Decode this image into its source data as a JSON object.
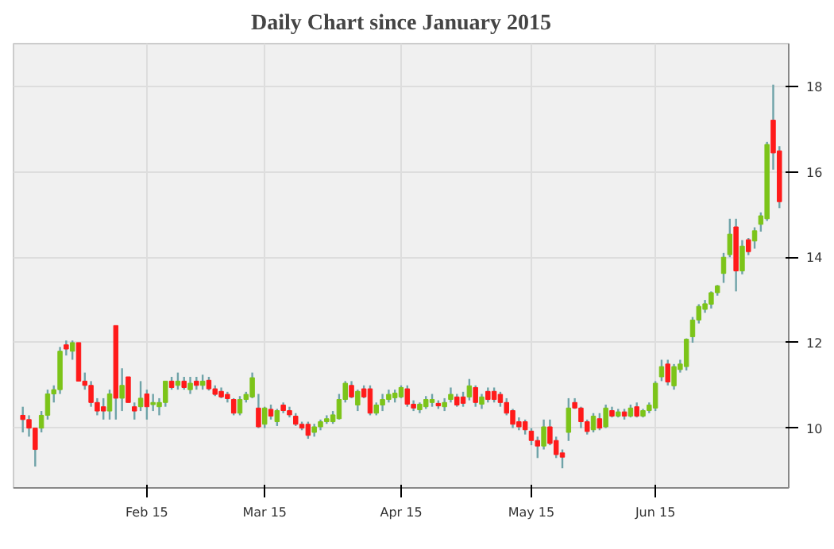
{
  "chart_data": {
    "type": "candlestick",
    "title": "Daily Chart since January 2015",
    "categories": [
      null,
      null,
      null,
      null,
      null,
      null,
      null,
      null,
      null,
      null,
      null,
      null,
      null,
      null,
      null,
      null,
      null,
      null,
      null,
      null,
      "Feb 15",
      null,
      null,
      null,
      null,
      null,
      null,
      null,
      null,
      null,
      null,
      null,
      null,
      null,
      null,
      null,
      null,
      null,
      null,
      "Mar 15",
      null,
      null,
      null,
      null,
      null,
      null,
      null,
      null,
      null,
      null,
      null,
      null,
      null,
      null,
      null,
      null,
      null,
      null,
      null,
      null,
      null,
      "Apr 15",
      null,
      null,
      null,
      null,
      null,
      null,
      null,
      null,
      null,
      null,
      null,
      null,
      null,
      null,
      null,
      null,
      null,
      null,
      null,
      null,
      "May 15",
      null,
      null,
      null,
      null,
      null,
      null,
      null,
      null,
      null,
      null,
      null,
      null,
      null,
      null,
      null,
      null,
      null,
      null,
      null,
      "Jun 15",
      null,
      null,
      null,
      null,
      null,
      null,
      null,
      null,
      null,
      null,
      null,
      null,
      null,
      null,
      null,
      null,
      null,
      null,
      null,
      null
    ],
    "ohlc": [
      [
        10.3,
        10.5,
        9.9,
        10.2
      ],
      [
        10.2,
        10.3,
        9.8,
        10.0
      ],
      [
        10.0,
        10.0,
        9.1,
        9.5
      ],
      [
        10.0,
        10.4,
        9.9,
        10.3
      ],
      [
        10.3,
        10.9,
        10.2,
        10.8
      ],
      [
        10.8,
        11.0,
        10.6,
        10.9
      ],
      [
        10.9,
        11.9,
        10.8,
        11.8
      ],
      [
        11.95,
        12.05,
        11.7,
        11.85
      ],
      [
        11.8,
        12.05,
        11.6,
        12.0
      ],
      [
        12.0,
        12.0,
        11.1,
        11.1
      ],
      [
        11.1,
        11.3,
        10.9,
        11.0
      ],
      [
        11.0,
        11.1,
        10.5,
        10.6
      ],
      [
        10.6,
        10.7,
        10.3,
        10.4
      ],
      [
        10.5,
        10.7,
        10.2,
        10.4
      ],
      [
        10.4,
        10.9,
        10.2,
        10.8
      ],
      [
        12.4,
        12.4,
        10.2,
        10.7
      ],
      [
        10.7,
        11.4,
        10.4,
        11.0
      ],
      [
        11.2,
        11.2,
        10.6,
        10.6
      ],
      [
        10.5,
        10.6,
        10.2,
        10.4
      ],
      [
        10.5,
        11.1,
        10.4,
        10.7
      ],
      [
        10.8,
        10.9,
        10.2,
        10.5
      ],
      [
        10.55,
        10.8,
        10.4,
        10.6
      ],
      [
        10.5,
        10.7,
        10.3,
        10.6
      ],
      [
        10.6,
        11.1,
        10.5,
        11.1
      ],
      [
        11.1,
        11.2,
        10.9,
        10.95
      ],
      [
        11.0,
        11.3,
        10.9,
        11.1
      ],
      [
        11.1,
        11.2,
        10.9,
        10.95
      ],
      [
        10.9,
        11.2,
        10.8,
        11.05
      ],
      [
        11.1,
        11.2,
        10.9,
        11.0
      ],
      [
        11.0,
        11.25,
        10.9,
        11.1
      ],
      [
        11.12,
        11.2,
        10.88,
        10.92
      ],
      [
        10.92,
        11.0,
        10.75,
        10.79
      ],
      [
        10.86,
        10.95,
        10.7,
        10.73
      ],
      [
        10.79,
        10.85,
        10.6,
        10.69
      ],
      [
        10.67,
        10.7,
        10.3,
        10.35
      ],
      [
        10.35,
        10.75,
        10.3,
        10.67
      ],
      [
        10.67,
        10.85,
        10.6,
        10.79
      ],
      [
        10.73,
        11.3,
        10.7,
        11.18
      ],
      [
        10.47,
        10.8,
        10.0,
        10.03
      ],
      [
        10.09,
        10.5,
        10.0,
        10.47
      ],
      [
        10.44,
        10.55,
        10.2,
        10.28
      ],
      [
        10.15,
        10.45,
        10.05,
        10.41
      ],
      [
        10.54,
        10.6,
        10.35,
        10.41
      ],
      [
        10.41,
        10.5,
        10.25,
        10.31
      ],
      [
        10.28,
        10.35,
        10.05,
        10.09
      ],
      [
        10.09,
        10.15,
        9.95,
        10.0
      ],
      [
        10.09,
        10.15,
        9.75,
        9.83
      ],
      [
        9.9,
        10.1,
        9.8,
        10.03
      ],
      [
        10.03,
        10.2,
        9.95,
        10.15
      ],
      [
        10.15,
        10.3,
        10.1,
        10.22
      ],
      [
        10.15,
        10.4,
        10.1,
        10.31
      ],
      [
        10.22,
        10.8,
        10.2,
        10.67
      ],
      [
        10.67,
        11.1,
        10.6,
        11.05
      ],
      [
        11.0,
        11.1,
        10.7,
        10.73
      ],
      [
        10.54,
        10.9,
        10.4,
        10.86
      ],
      [
        10.92,
        11.0,
        10.7,
        10.73
      ],
      [
        10.92,
        11.0,
        10.3,
        10.35
      ],
      [
        10.35,
        10.6,
        10.3,
        10.54
      ],
      [
        10.54,
        10.8,
        10.4,
        10.67
      ],
      [
        10.67,
        10.9,
        10.6,
        10.79
      ],
      [
        10.71,
        10.9,
        10.6,
        10.82
      ],
      [
        10.73,
        11.0,
        10.7,
        10.95
      ],
      [
        10.92,
        11.0,
        10.5,
        10.56
      ],
      [
        10.56,
        10.65,
        10.4,
        10.47
      ],
      [
        10.43,
        10.6,
        10.35,
        10.56
      ],
      [
        10.5,
        10.75,
        10.45,
        10.67
      ],
      [
        10.6,
        10.8,
        10.5,
        10.67
      ],
      [
        10.58,
        10.65,
        10.45,
        10.52
      ],
      [
        10.5,
        10.7,
        10.4,
        10.6
      ],
      [
        10.67,
        10.95,
        10.6,
        10.79
      ],
      [
        10.73,
        10.8,
        10.5,
        10.54
      ],
      [
        10.73,
        10.85,
        10.5,
        10.58
      ],
      [
        10.73,
        11.15,
        10.65,
        10.99
      ],
      [
        10.95,
        11.0,
        10.5,
        10.6
      ],
      [
        10.56,
        10.8,
        10.45,
        10.73
      ],
      [
        10.86,
        10.95,
        10.6,
        10.67
      ],
      [
        10.86,
        10.95,
        10.6,
        10.67
      ],
      [
        10.79,
        10.85,
        10.5,
        10.6
      ],
      [
        10.6,
        10.7,
        10.3,
        10.35
      ],
      [
        10.41,
        10.45,
        10.0,
        10.09
      ],
      [
        10.15,
        10.25,
        9.95,
        10.03
      ],
      [
        10.15,
        10.2,
        9.85,
        9.96
      ],
      [
        9.93,
        10.0,
        9.6,
        9.71
      ],
      [
        9.71,
        9.8,
        9.3,
        9.58
      ],
      [
        9.58,
        10.2,
        9.5,
        10.03
      ],
      [
        10.03,
        10.2,
        9.6,
        9.64
      ],
      [
        9.71,
        9.8,
        9.3,
        9.38
      ],
      [
        9.42,
        9.5,
        9.06,
        9.32
      ],
      [
        9.9,
        10.7,
        9.7,
        10.47
      ],
      [
        10.6,
        10.7,
        10.45,
        10.47
      ],
      [
        10.47,
        10.5,
        10.0,
        10.15
      ],
      [
        10.15,
        10.2,
        9.85,
        9.92
      ],
      [
        9.96,
        10.35,
        9.9,
        10.28
      ],
      [
        10.22,
        10.35,
        9.95,
        10.0
      ],
      [
        10.03,
        10.55,
        10.0,
        10.47
      ],
      [
        10.41,
        10.5,
        10.25,
        10.28
      ],
      [
        10.28,
        10.45,
        10.25,
        10.38
      ],
      [
        10.38,
        10.45,
        10.2,
        10.28
      ],
      [
        10.28,
        10.55,
        10.25,
        10.47
      ],
      [
        10.5,
        10.6,
        10.25,
        10.28
      ],
      [
        10.28,
        10.45,
        10.25,
        10.41
      ],
      [
        10.41,
        10.6,
        10.35,
        10.54
      ],
      [
        10.47,
        11.1,
        10.4,
        11.05
      ],
      [
        11.2,
        11.6,
        11.1,
        11.44
      ],
      [
        11.5,
        11.6,
        11.0,
        11.08
      ],
      [
        10.99,
        11.5,
        10.9,
        11.44
      ],
      [
        11.37,
        11.6,
        11.3,
        11.5
      ],
      [
        11.44,
        12.1,
        11.35,
        12.08
      ],
      [
        12.14,
        12.6,
        12.0,
        12.53
      ],
      [
        12.53,
        12.9,
        12.45,
        12.85
      ],
      [
        12.78,
        13.0,
        12.7,
        12.91
      ],
      [
        12.9,
        13.2,
        12.8,
        13.17
      ],
      [
        13.17,
        13.35,
        13.1,
        13.33
      ],
      [
        13.62,
        14.1,
        13.4,
        14.0
      ],
      [
        14.06,
        14.9,
        14.0,
        14.54
      ],
      [
        14.71,
        14.9,
        13.2,
        13.68
      ],
      [
        13.68,
        14.4,
        13.6,
        14.26
      ],
      [
        14.41,
        14.45,
        14.05,
        14.13
      ],
      [
        14.38,
        14.7,
        14.2,
        14.62
      ],
      [
        14.77,
        15.05,
        14.6,
        14.97
      ],
      [
        14.9,
        16.7,
        14.85,
        16.64
      ],
      [
        17.21,
        18.04,
        16.05,
        16.44
      ],
      [
        16.49,
        16.6,
        15.15,
        15.3
      ]
    ],
    "ylim": [
      8.6,
      19
    ],
    "yticks": [
      10,
      12,
      14,
      16,
      18
    ],
    "grid": true
  }
}
